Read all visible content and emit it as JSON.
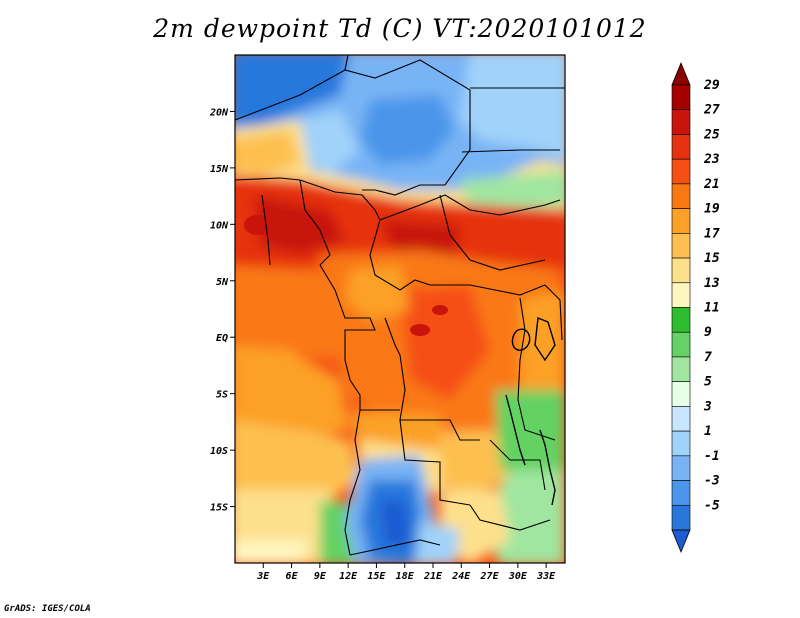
{
  "title": "2m dewpoint Td (C) VT:2020101012",
  "credit": "GrADS: IGES/COLA",
  "map": {
    "variable": "2m dewpoint temperature",
    "units": "C",
    "lon_range": [
      0,
      35
    ],
    "lat_range": [
      -20,
      25
    ],
    "lat_ticks": [
      {
        "value": 20,
        "label": "20N"
      },
      {
        "value": 15,
        "label": "15N"
      },
      {
        "value": 10,
        "label": "10N"
      },
      {
        "value": 5,
        "label": "5N"
      },
      {
        "value": 0,
        "label": "EQ"
      },
      {
        "value": -5,
        "label": "5S"
      },
      {
        "value": -10,
        "label": "10S"
      },
      {
        "value": -15,
        "label": "15S"
      }
    ],
    "lon_ticks": [
      {
        "value": 3,
        "label": "3E"
      },
      {
        "value": 6,
        "label": "6E"
      },
      {
        "value": 9,
        "label": "9E"
      },
      {
        "value": 12,
        "label": "12E"
      },
      {
        "value": 15,
        "label": "15E"
      },
      {
        "value": 18,
        "label": "18E"
      },
      {
        "value": 21,
        "label": "21E"
      },
      {
        "value": 24,
        "label": "24E"
      },
      {
        "value": 27,
        "label": "27E"
      },
      {
        "value": 30,
        "label": "30E"
      },
      {
        "value": 33,
        "label": "33E"
      }
    ]
  },
  "colorbar": {
    "levels": [
      {
        "label": "29",
        "color": "#a50000"
      },
      {
        "label": "27",
        "color": "#c8140a"
      },
      {
        "label": "25",
        "color": "#e6320f"
      },
      {
        "label": "23",
        "color": "#f55014"
      },
      {
        "label": "21",
        "color": "#fa7814"
      },
      {
        "label": "19",
        "color": "#fca028"
      },
      {
        "label": "17",
        "color": "#fdc050"
      },
      {
        "label": "15",
        "color": "#fde08c"
      },
      {
        "label": "13",
        "color": "#fff5be"
      },
      {
        "label": "11",
        "color": "#2dbe2d"
      },
      {
        "label": "9",
        "color": "#64d264"
      },
      {
        "label": "7",
        "color": "#a0e6a0"
      },
      {
        "label": "5",
        "color": "#e6ffe6"
      },
      {
        "label": "3",
        "color": "#c8e6ff"
      },
      {
        "label": "1",
        "color": "#a0d2fa"
      },
      {
        "label": "-1",
        "color": "#78b4f5"
      },
      {
        "label": "-3",
        "color": "#4b96eb"
      },
      {
        "label": "-5",
        "color": "#2878dc"
      }
    ],
    "min_color": "#1e5ad2",
    "max_color": "#8c0000"
  }
}
